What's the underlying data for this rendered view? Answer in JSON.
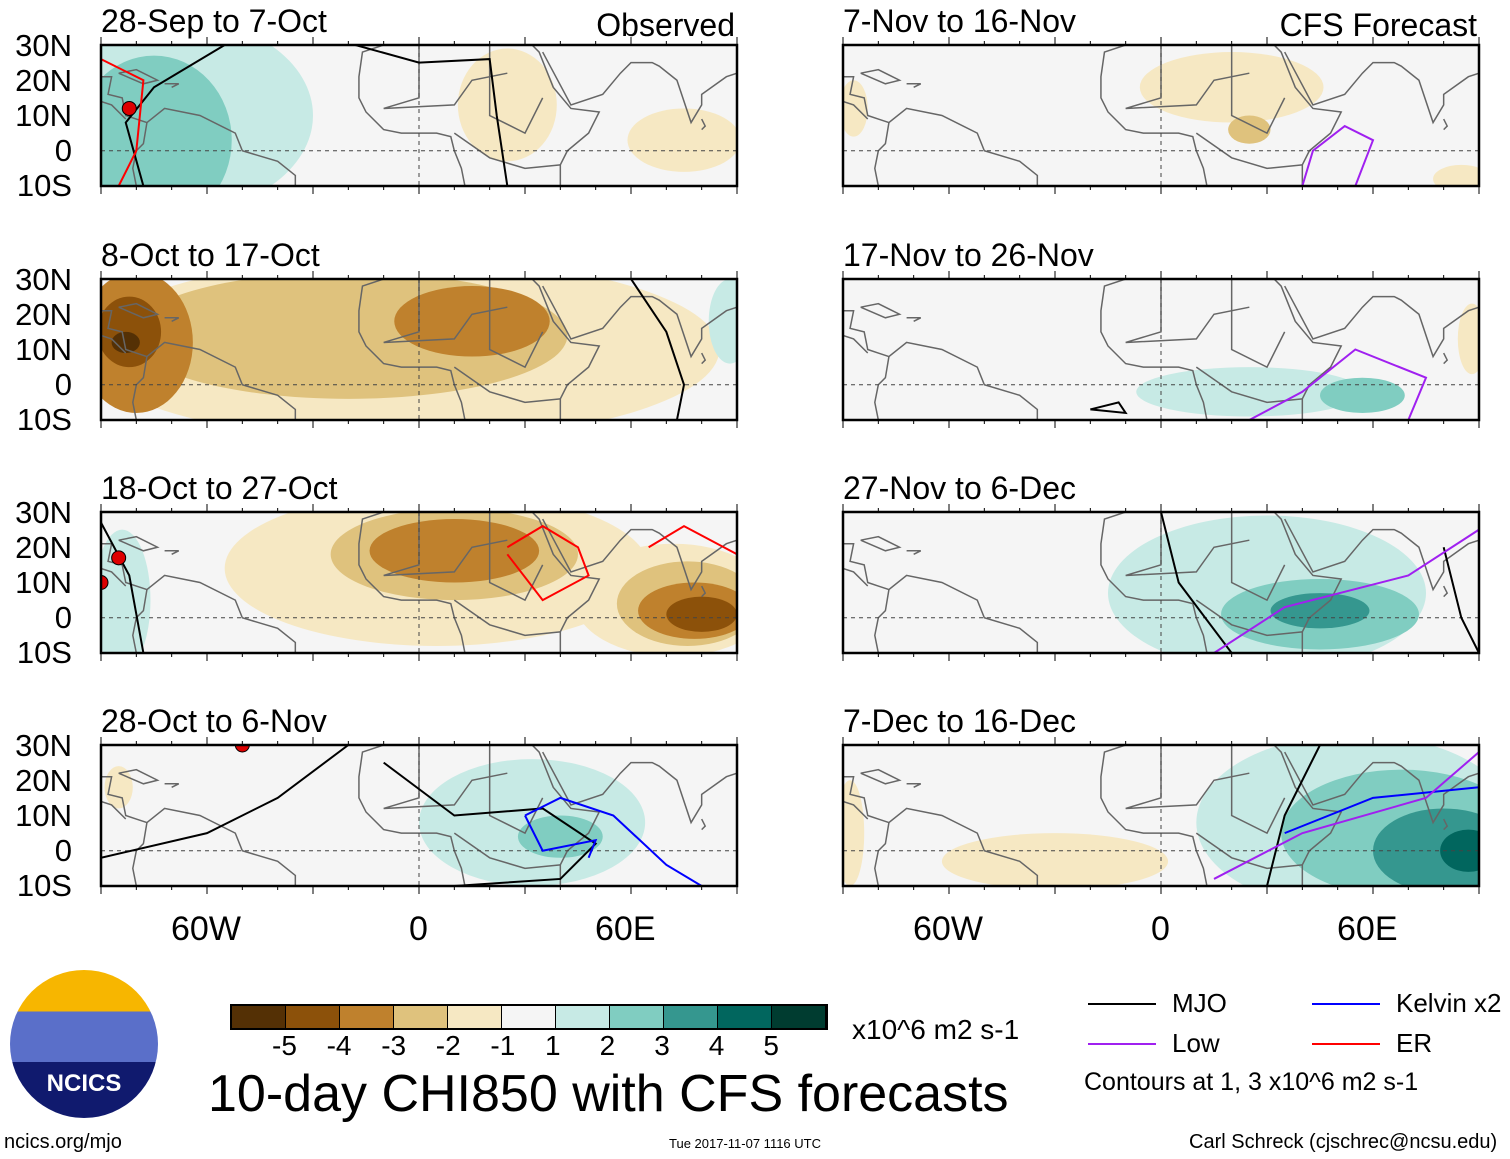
{
  "title": "10-day CHI850 with CFS forecasts",
  "units": "x10^6 m2 s-1",
  "footer": {
    "left": "ncics.org/mjo",
    "center": "Tue 2017-11-07 1116 UTC",
    "right": "Carl Schreck (cjschrec@ncsu.edu)"
  },
  "logo_text": "NCICS",
  "legend": {
    "items": [
      {
        "label": "MJO",
        "color": "#000000"
      },
      {
        "label": "Kelvin x2",
        "color": "#0000ff"
      },
      {
        "label": "Low",
        "color": "#a020f0"
      },
      {
        "label": "ER",
        "color": "#ff0000"
      }
    ],
    "note": "Contours at 1, 3 x10^6 m2 s-1"
  },
  "colorbar": {
    "ticks": [
      "-5",
      "-4",
      "-3",
      "-2",
      "-1",
      "1",
      "2",
      "3",
      "4",
      "5"
    ],
    "colors": [
      "#543005",
      "#8c510a",
      "#bf812d",
      "#dfc27d",
      "#f6e8c3",
      "#f5f5f5",
      "#c7eae5",
      "#80cdc1",
      "#35978f",
      "#01665e",
      "#003c30"
    ]
  },
  "chart_data": {
    "type": "heatmap",
    "lat_labels": [
      "30N",
      "20N",
      "10N",
      "0",
      "10S"
    ],
    "lon_labels": [
      "60W",
      "0",
      "60E"
    ],
    "lon_range": [
      -90,
      90
    ],
    "lat_range": [
      -10,
      30
    ],
    "columns": [
      {
        "tag": "Observed"
      },
      {
        "tag": "CFS Forecast"
      }
    ],
    "panels": [
      {
        "col": 0,
        "row": 0,
        "title": "28-Sep to 7-Oct",
        "blobs": [
          [
            -70,
            10,
            40,
            28,
            1
          ],
          [
            -75,
            3,
            22,
            24,
            2
          ],
          [
            25,
            13,
            14,
            16,
            -1
          ],
          [
            75,
            3,
            16,
            9,
            -1
          ]
        ],
        "contours": [
          {
            "type": "MJO",
            "pts": [
              [
                -55,
                30
              ],
              [
                -75,
                18
              ],
              [
                -83,
                8
              ],
              [
                -78,
                -10
              ]
            ]
          },
          {
            "type": "MJO",
            "pts": [
              [
                -18,
                30
              ],
              [
                0,
                25
              ],
              [
                20,
                26
              ],
              [
                22,
                10
              ],
              [
                25,
                -10
              ]
            ]
          },
          {
            "type": "ER",
            "pts": [
              [
                -90,
                26
              ],
              [
                -78,
                20
              ],
              [
                -80,
                0
              ],
              [
                -85,
                -10
              ]
            ]
          }
        ],
        "storms": [
          [
            -82,
            12,
            "N"
          ]
        ]
      },
      {
        "col": 0,
        "row": 1,
        "title": "8-Oct to 17-Oct",
        "blobs": [
          [
            -5,
            10,
            90,
            26,
            -1
          ],
          [
            -20,
            14,
            62,
            18,
            -2
          ],
          [
            15,
            18,
            22,
            10,
            -3
          ],
          [
            -80,
            12,
            16,
            20,
            -3
          ],
          [
            -82,
            15,
            9,
            10,
            -4
          ],
          [
            -83,
            12,
            4,
            3,
            -5
          ],
          [
            88,
            18,
            6,
            12,
            1
          ]
        ],
        "contours": [
          {
            "type": "MJO",
            "pts": [
              [
                60,
                30
              ],
              [
                70,
                15
              ],
              [
                75,
                0
              ],
              [
                73,
                -10
              ]
            ]
          }
        ],
        "storms": []
      },
      {
        "col": 0,
        "row": 2,
        "title": "18-Oct to 27-Oct",
        "blobs": [
          [
            5,
            14,
            60,
            22,
            -1
          ],
          [
            72,
            5,
            28,
            16,
            -1
          ],
          [
            10,
            18,
            35,
            13,
            -2
          ],
          [
            76,
            4,
            20,
            12,
            -2
          ],
          [
            10,
            19,
            24,
            9,
            -3
          ],
          [
            78,
            2,
            16,
            8,
            -3
          ],
          [
            80,
            1,
            10,
            5,
            -4
          ],
          [
            -84,
            5,
            8,
            20,
            1
          ]
        ],
        "contours": [
          {
            "type": "ER",
            "pts": [
              [
                25,
                20
              ],
              [
                35,
                26
              ],
              [
                45,
                20
              ],
              [
                48,
                12
              ],
              [
                35,
                5
              ],
              [
                25,
                18
              ]
            ]
          },
          {
            "type": "ER",
            "pts": [
              [
                65,
                20
              ],
              [
                75,
                26
              ],
              [
                90,
                18
              ]
            ]
          },
          {
            "type": "MJO",
            "pts": [
              [
                -90,
                27
              ],
              [
                -82,
                12
              ],
              [
                -78,
                -10
              ]
            ]
          }
        ],
        "storms": [
          [
            -85,
            17,
            "P"
          ],
          [
            -90,
            10,
            "S"
          ]
        ]
      },
      {
        "col": 0,
        "row": 3,
        "title": "28-Oct to 6-Nov",
        "blobs": [
          [
            32,
            8,
            32,
            18,
            1
          ],
          [
            40,
            4,
            12,
            6,
            2
          ],
          [
            -85,
            18,
            4,
            6,
            -1
          ]
        ],
        "contours": [
          {
            "type": "MJO",
            "pts": [
              [
                -90,
                -2
              ],
              [
                -60,
                5
              ],
              [
                -40,
                15
              ],
              [
                -20,
                30
              ]
            ]
          },
          {
            "type": "MJO",
            "pts": [
              [
                -10,
                25
              ],
              [
                10,
                10
              ],
              [
                35,
                12
              ],
              [
                50,
                2
              ],
              [
                40,
                -8
              ],
              [
                10,
                -10
              ]
            ]
          },
          {
            "type": "Kelvin",
            "pts": [
              [
                30,
                10
              ],
              [
                40,
                15
              ],
              [
                55,
                10
              ],
              [
                70,
                -4
              ],
              [
                80,
                -10
              ]
            ]
          },
          {
            "type": "Kelvin",
            "pts": [
              [
                30,
                10
              ],
              [
                35,
                0
              ],
              [
                50,
                3
              ],
              [
                48,
                -2
              ]
            ]
          }
        ],
        "storms": [
          [
            -50,
            30,
            "19"
          ]
        ]
      },
      {
        "col": 1,
        "row": 0,
        "title": "7-Nov to 16-Nov",
        "blobs": [
          [
            20,
            18,
            26,
            10,
            -1
          ],
          [
            -87,
            12,
            4,
            8,
            -1
          ],
          [
            85,
            -8,
            8,
            4,
            -1
          ],
          [
            25,
            6,
            6,
            4,
            -2
          ]
        ],
        "contours": [
          {
            "type": "Low",
            "pts": [
              [
                40,
                -10
              ],
              [
                43,
                0
              ],
              [
                52,
                7
              ],
              [
                60,
                3
              ],
              [
                55,
                -10
              ]
            ]
          }
        ],
        "storms": []
      },
      {
        "col": 1,
        "row": 1,
        "title": "17-Nov to 26-Nov",
        "blobs": [
          [
            25,
            -2,
            32,
            7,
            1
          ],
          [
            57,
            -3,
            12,
            5,
            2
          ],
          [
            88,
            13,
            4,
            10,
            -1
          ]
        ],
        "contours": [
          {
            "type": "Low",
            "pts": [
              [
                25,
                -10
              ],
              [
                40,
                -2
              ],
              [
                55,
                10
              ],
              [
                75,
                2
              ],
              [
                70,
                -10
              ]
            ]
          },
          {
            "type": "MJO",
            "pts": [
              [
                -20,
                -7
              ],
              [
                -12,
                -5
              ],
              [
                -10,
                -8
              ],
              [
                -20,
                -7
              ]
            ]
          }
        ],
        "storms": []
      },
      {
        "col": 1,
        "row": 2,
        "title": "27-Nov to 6-Dec",
        "blobs": [
          [
            30,
            7,
            45,
            22,
            1
          ],
          [
            45,
            1,
            28,
            10,
            2
          ],
          [
            45,
            2,
            14,
            5,
            3
          ]
        ],
        "contours": [
          {
            "type": "MJO",
            "pts": [
              [
                0,
                30
              ],
              [
                5,
                10
              ],
              [
                20,
                -10
              ]
            ]
          },
          {
            "type": "MJO",
            "pts": [
              [
                80,
                20
              ],
              [
                85,
                0
              ],
              [
                90,
                -10
              ]
            ]
          },
          {
            "type": "Low",
            "pts": [
              [
                15,
                -10
              ],
              [
                35,
                3
              ],
              [
                70,
                12
              ],
              [
                90,
                25
              ]
            ]
          }
        ],
        "storms": []
      },
      {
        "col": 1,
        "row": 3,
        "title": "7-Dec to 16-Dec",
        "blobs": [
          [
            -30,
            -3,
            32,
            8,
            -1
          ],
          [
            -88,
            5,
            4,
            15,
            -1
          ],
          [
            55,
            8,
            45,
            25,
            1
          ],
          [
            68,
            5,
            34,
            18,
            2
          ],
          [
            80,
            0,
            20,
            12,
            3
          ],
          [
            87,
            0,
            8,
            6,
            4
          ]
        ],
        "contours": [
          {
            "type": "MJO",
            "pts": [
              [
                45,
                30
              ],
              [
                35,
                10
              ],
              [
                30,
                -10
              ]
            ]
          },
          {
            "type": "Kelvin",
            "pts": [
              [
                35,
                5
              ],
              [
                60,
                15
              ],
              [
                90,
                18
              ]
            ]
          },
          {
            "type": "Low",
            "pts": [
              [
                15,
                -8
              ],
              [
                40,
                5
              ],
              [
                75,
                15
              ],
              [
                90,
                28
              ]
            ]
          }
        ],
        "storms": []
      }
    ]
  }
}
